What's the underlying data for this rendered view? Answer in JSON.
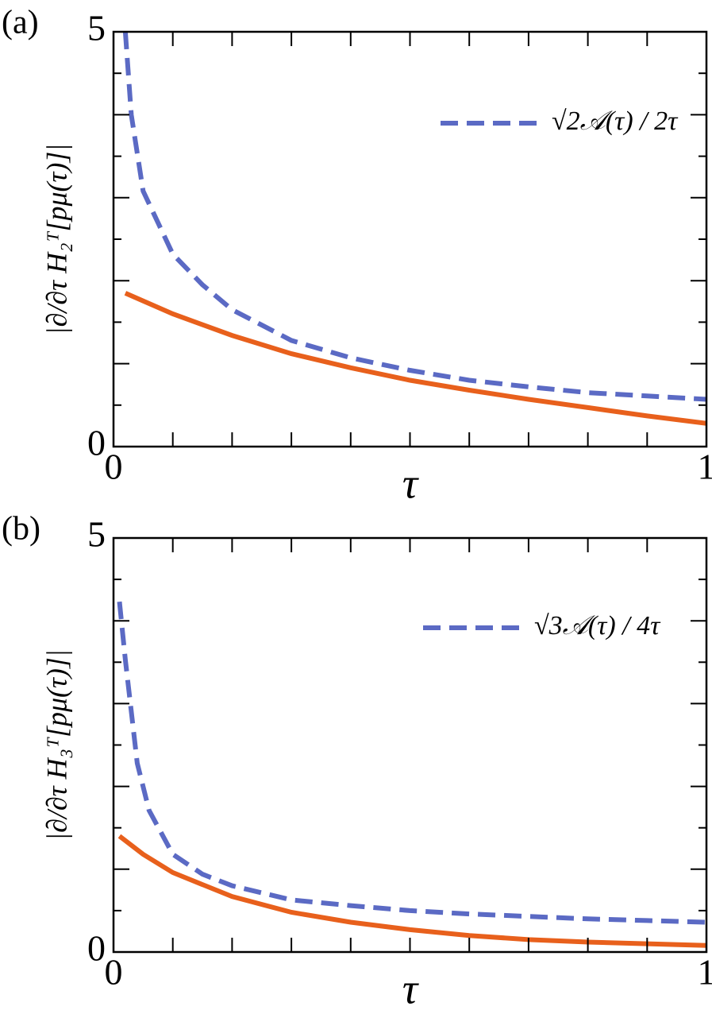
{
  "chart_data": [
    {
      "type": "line",
      "panel_label": "(a)",
      "x_label": "τ",
      "y_label": "|∂/∂τ H₂ᵀ[pμ(τ)]|",
      "xlim": [
        0,
        1
      ],
      "ylim": [
        0,
        5
      ],
      "xticks": [
        0,
        1
      ],
      "yticks": [
        0,
        5
      ],
      "xminorticks": [
        0.1,
        0.2,
        0.3,
        0.4,
        0.5,
        0.6,
        0.7,
        0.8,
        0.9
      ],
      "yminorticks": [
        0.5,
        1,
        1.5,
        2,
        2.5,
        3,
        3.5,
        4,
        4.5
      ],
      "legend": "upper right",
      "series": [
        {
          "color": "#e8601c",
          "dash": "solid",
          "x": [
            0.02,
            0.1,
            0.2,
            0.3,
            0.4,
            0.5,
            0.6,
            0.7,
            0.8,
            0.9,
            1.0
          ],
          "values": [
            1.85,
            1.6,
            1.34,
            1.12,
            0.95,
            0.8,
            0.68,
            0.57,
            0.47,
            0.37,
            0.28
          ]
        },
        {
          "name": "√2𝒜(τ) / 2τ",
          "color": "#5b6ac4",
          "dash": "dashed",
          "x": [
            0.02,
            0.03,
            0.05,
            0.1,
            0.15,
            0.2,
            0.3,
            0.4,
            0.5,
            0.6,
            0.7,
            0.8,
            0.9,
            1.0
          ],
          "values": [
            5.0,
            4.0,
            3.08,
            2.32,
            1.95,
            1.65,
            1.28,
            1.07,
            0.92,
            0.8,
            0.72,
            0.65,
            0.61,
            0.57
          ]
        }
      ]
    },
    {
      "type": "line",
      "panel_label": "(b)",
      "x_label": "τ",
      "y_label": "|∂/∂τ H₃ᵀ[pμ(τ)]|",
      "xlim": [
        0,
        1
      ],
      "ylim": [
        0,
        5
      ],
      "xticks": [
        0,
        1
      ],
      "yticks": [
        0,
        5
      ],
      "xminorticks": [
        0.1,
        0.2,
        0.3,
        0.4,
        0.5,
        0.6,
        0.7,
        0.8,
        0.9
      ],
      "yminorticks": [
        0.5,
        1,
        1.5,
        2,
        2.5,
        3,
        3.5,
        4,
        4.5
      ],
      "legend": "upper right",
      "series": [
        {
          "color": "#e8601c",
          "dash": "solid",
          "x": [
            0.01,
            0.05,
            0.1,
            0.2,
            0.3,
            0.4,
            0.5,
            0.6,
            0.7,
            0.8,
            0.9,
            1.0
          ],
          "values": [
            1.4,
            1.18,
            0.96,
            0.67,
            0.48,
            0.36,
            0.27,
            0.2,
            0.15,
            0.12,
            0.1,
            0.08
          ]
        },
        {
          "name": "√3𝒜(τ) / 4τ",
          "color": "#5b6ac4",
          "dash": "dashed",
          "x": [
            0.01,
            0.02,
            0.04,
            0.06,
            0.1,
            0.15,
            0.2,
            0.3,
            0.4,
            0.5,
            0.6,
            0.7,
            0.8,
            0.9,
            1.0
          ],
          "values": [
            4.23,
            3.53,
            2.28,
            1.71,
            1.18,
            0.94,
            0.8,
            0.63,
            0.56,
            0.5,
            0.46,
            0.43,
            0.4,
            0.38,
            0.36
          ]
        }
      ]
    }
  ]
}
